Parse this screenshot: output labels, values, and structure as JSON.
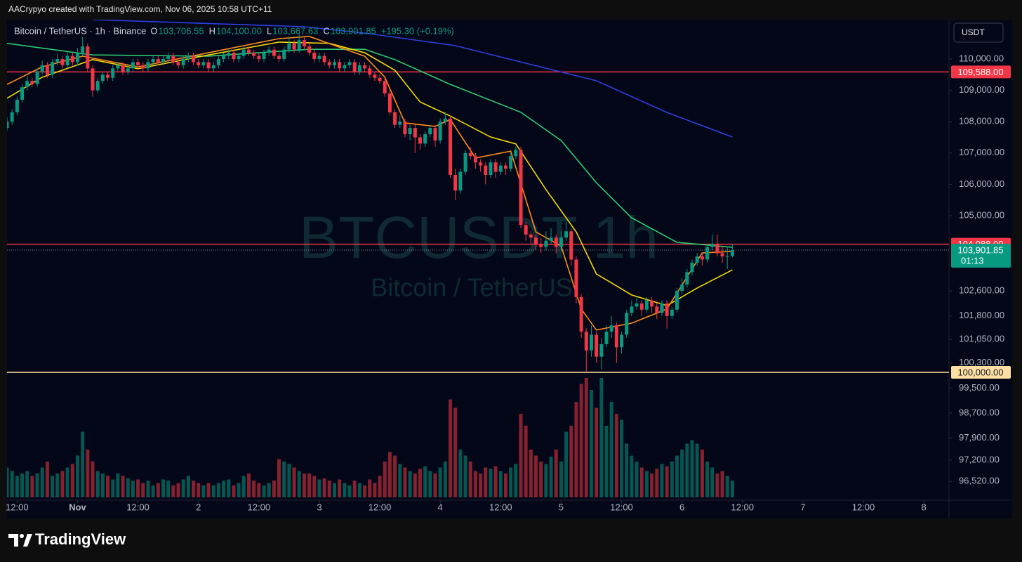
{
  "header": "AACrypyo created with TradingView.com, Nov 06, 2025 10:58 UTC+11",
  "brand": "TradingView",
  "chart_data": {
    "type": "candlestick",
    "title": "Bitcoin / TetherUS · 1h · Binance",
    "ohlc_legend": [
      [
        "O",
        "103,706.55"
      ],
      [
        "H",
        "104,100.00"
      ],
      [
        "L",
        "103,667.63"
      ],
      [
        "C",
        "103,901.85"
      ],
      [
        "",
        "+195.30 (+0.19%)"
      ]
    ],
    "currency": "USDT",
    "watermark": [
      "BTCUSDT 1h",
      "Bitcoin / TetherUS"
    ],
    "colors": {
      "up": "#089981",
      "down": "#f23645"
    },
    "candles": [
      [
        107800,
        108150,
        107700,
        108000
      ],
      [
        108000,
        108400,
        107900,
        108300
      ],
      [
        108300,
        108800,
        108200,
        108700
      ],
      [
        108700,
        109200,
        108600,
        109100
      ],
      [
        109100,
        109450,
        109000,
        109300
      ],
      [
        109300,
        109400,
        109100,
        109200
      ],
      [
        109200,
        109700,
        109100,
        109600
      ],
      [
        109600,
        109950,
        109500,
        109800
      ],
      [
        109800,
        109900,
        109400,
        109500
      ],
      [
        109500,
        110000,
        109400,
        109900
      ],
      [
        109900,
        110150,
        109800,
        110000
      ],
      [
        110000,
        110100,
        109700,
        109800
      ],
      [
        109800,
        110250,
        109700,
        110100
      ],
      [
        110100,
        110200,
        109800,
        109900
      ],
      [
        109900,
        110350,
        109800,
        110200
      ],
      [
        110200,
        110700,
        110100,
        110400
      ],
      [
        110400,
        110500,
        109600,
        109700
      ],
      [
        109700,
        109800,
        108800,
        109000
      ],
      [
        109000,
        109400,
        108900,
        109300
      ],
      [
        109300,
        109600,
        109200,
        109500
      ],
      [
        109500,
        109600,
        109300,
        109400
      ],
      [
        109400,
        109800,
        109300,
        109700
      ],
      [
        109700,
        109900,
        109600,
        109800
      ],
      [
        109800,
        109900,
        109500,
        109600
      ],
      [
        109600,
        109800,
        109500,
        109700
      ],
      [
        109700,
        110000,
        109600,
        109900
      ],
      [
        109900,
        110000,
        109700,
        109800
      ],
      [
        109800,
        109900,
        109600,
        109700
      ],
      [
        109700,
        110000,
        109600,
        109900
      ],
      [
        109900,
        110100,
        109800,
        110000
      ],
      [
        110000,
        110100,
        109800,
        109900
      ],
      [
        109900,
        110100,
        109800,
        110000
      ],
      [
        110000,
        110200,
        109900,
        110100
      ],
      [
        110100,
        110200,
        109800,
        109900
      ],
      [
        109900,
        110000,
        109700,
        109800
      ],
      [
        109800,
        110100,
        109700,
        110000
      ],
      [
        110000,
        110200,
        109900,
        110100
      ],
      [
        110100,
        110200,
        109800,
        109900
      ],
      [
        109900,
        110000,
        109700,
        109800
      ],
      [
        109800,
        110000,
        109700,
        109900
      ],
      [
        109900,
        110000,
        109600,
        109700
      ],
      [
        109700,
        109900,
        109600,
        109800
      ],
      [
        109800,
        110100,
        109700,
        110000
      ],
      [
        110000,
        110200,
        109900,
        110100
      ],
      [
        110100,
        110300,
        110000,
        110200
      ],
      [
        110200,
        110300,
        109900,
        110000
      ],
      [
        110000,
        110200,
        109900,
        110100
      ],
      [
        110100,
        110400,
        110000,
        110300
      ],
      [
        110300,
        110400,
        110100,
        110200
      ],
      [
        110200,
        110300,
        110000,
        110100
      ],
      [
        110100,
        110200,
        109900,
        110000
      ],
      [
        110000,
        110300,
        109900,
        110200
      ],
      [
        110200,
        110400,
        110100,
        110300
      ],
      [
        110300,
        110400,
        110000,
        110100
      ],
      [
        110100,
        110200,
        109900,
        110000
      ],
      [
        110000,
        110400,
        109900,
        110300
      ],
      [
        110300,
        110700,
        110200,
        110500
      ],
      [
        110500,
        110600,
        110200,
        110300
      ],
      [
        110300,
        110800,
        110200,
        110600
      ],
      [
        110600,
        110700,
        110300,
        110400
      ],
      [
        110400,
        110500,
        110100,
        110200
      ],
      [
        110200,
        110300,
        109900,
        110000
      ],
      [
        110000,
        110200,
        109900,
        110100
      ],
      [
        110100,
        110200,
        109800,
        109900
      ],
      [
        109900,
        110000,
        109700,
        109800
      ],
      [
        109800,
        110000,
        109700,
        109900
      ],
      [
        109900,
        110000,
        109600,
        109700
      ],
      [
        109700,
        109900,
        109600,
        109800
      ],
      [
        109800,
        110000,
        109700,
        109900
      ],
      [
        109900,
        110000,
        109500,
        109600
      ],
      [
        109600,
        109900,
        109500,
        109800
      ],
      [
        109800,
        109900,
        109600,
        109700
      ],
      [
        109700,
        109800,
        109400,
        109500
      ],
      [
        109500,
        109600,
        109300,
        109400
      ],
      [
        109400,
        109500,
        109200,
        109300
      ],
      [
        109300,
        109400,
        108800,
        108900
      ],
      [
        108900,
        109000,
        108200,
        108300
      ],
      [
        108300,
        108400,
        107800,
        107900
      ],
      [
        107900,
        108200,
        107800,
        108000
      ],
      [
        108000,
        108100,
        107500,
        107600
      ],
      [
        107600,
        107900,
        107400,
        107800
      ],
      [
        107800,
        107900,
        107000,
        107500
      ],
      [
        107500,
        107600,
        107100,
        107300
      ],
      [
        107300,
        107700,
        107200,
        107600
      ],
      [
        107600,
        107900,
        107500,
        107800
      ],
      [
        107800,
        107900,
        107200,
        107400
      ],
      [
        107400,
        108100,
        107300,
        108000
      ],
      [
        108000,
        108300,
        107900,
        108100
      ],
      [
        108100,
        108200,
        106200,
        106300
      ],
      [
        106300,
        106500,
        105500,
        105800
      ],
      [
        105800,
        106500,
        105700,
        106400
      ],
      [
        106400,
        107100,
        106300,
        107000
      ],
      [
        107000,
        107200,
        106800,
        106900
      ],
      [
        106900,
        107000,
        106500,
        106700
      ],
      [
        106700,
        106800,
        106400,
        106600
      ],
      [
        106600,
        106700,
        106000,
        106300
      ],
      [
        106300,
        106800,
        106200,
        106700
      ],
      [
        106700,
        106800,
        106200,
        106400
      ],
      [
        106400,
        106700,
        106300,
        106600
      ],
      [
        106600,
        106700,
        106300,
        106500
      ],
      [
        106500,
        107000,
        106400,
        106900
      ],
      [
        106900,
        107200,
        106800,
        107100
      ],
      [
        107100,
        107200,
        104600,
        104700
      ],
      [
        104700,
        104800,
        104200,
        104400
      ],
      [
        104400,
        104500,
        104100,
        104300
      ],
      [
        104300,
        104400,
        103900,
        104100
      ],
      [
        104100,
        104300,
        103800,
        104000
      ],
      [
        104000,
        104500,
        103900,
        104200
      ],
      [
        104200,
        104600,
        104100,
        104300
      ],
      [
        104300,
        104400,
        103800,
        104000
      ],
      [
        104000,
        104500,
        103900,
        104300
      ],
      [
        104300,
        104800,
        104200,
        104500
      ],
      [
        104500,
        104600,
        103400,
        103600
      ],
      [
        103600,
        103700,
        102200,
        102400
      ],
      [
        102400,
        102500,
        101100,
        101300
      ],
      [
        101300,
        101400,
        100000,
        100700
      ],
      [
        100700,
        101500,
        100500,
        101200
      ],
      [
        101200,
        101300,
        100300,
        100500
      ],
      [
        100500,
        101100,
        100100,
        100900
      ],
      [
        100900,
        101500,
        100800,
        101300
      ],
      [
        101300,
        101800,
        101100,
        101500
      ],
      [
        101500,
        101600,
        100300,
        100800
      ],
      [
        100800,
        101300,
        100600,
        101200
      ],
      [
        101200,
        102000,
        101100,
        101900
      ],
      [
        101900,
        102300,
        101800,
        102100
      ],
      [
        102100,
        102400,
        102000,
        102200
      ],
      [
        102200,
        102300,
        101800,
        102000
      ],
      [
        102000,
        102400,
        101900,
        102300
      ],
      [
        102300,
        102400,
        101900,
        102100
      ],
      [
        102100,
        102200,
        101700,
        101900
      ],
      [
        101900,
        102300,
        101800,
        102200
      ],
      [
        102200,
        102300,
        101400,
        101800
      ],
      [
        101800,
        102100,
        101700,
        102000
      ],
      [
        102000,
        102700,
        101900,
        102600
      ],
      [
        102600,
        103000,
        102500,
        102800
      ],
      [
        102800,
        103300,
        102700,
        103200
      ],
      [
        103200,
        103600,
        103100,
        103500
      ],
      [
        103500,
        103800,
        103400,
        103700
      ],
      [
        103700,
        103800,
        103400,
        103600
      ],
      [
        103600,
        104100,
        103500,
        104000
      ],
      [
        104000,
        104400,
        103900,
        104100
      ],
      [
        104100,
        104400,
        103700,
        103800
      ],
      [
        103800,
        104000,
        103500,
        103700
      ],
      [
        103700,
        104000,
        103300,
        103706.55
      ],
      [
        103706.55,
        104100,
        103667.63,
        103901.85
      ]
    ],
    "volume": [
      25,
      22,
      18,
      20,
      22,
      18,
      20,
      25,
      30,
      18,
      20,
      22,
      25,
      28,
      35,
      55,
      40,
      30,
      22,
      20,
      18,
      15,
      20,
      18,
      16,
      14,
      15,
      12,
      14,
      10,
      12,
      15,
      14,
      10,
      12,
      15,
      18,
      14,
      12,
      10,
      12,
      10,
      12,
      14,
      15,
      10,
      12,
      18,
      20,
      14,
      12,
      10,
      12,
      14,
      32,
      30,
      28,
      25,
      22,
      20,
      20,
      18,
      15,
      16,
      14,
      12,
      15,
      12,
      10,
      14,
      12,
      10,
      15,
      12,
      18,
      30,
      38,
      35,
      28,
      25,
      22,
      20,
      24,
      26,
      22,
      20,
      25,
      30,
      82,
      75,
      40,
      35,
      30,
      22,
      20,
      25,
      24,
      26,
      22,
      20,
      25,
      28,
      70,
      60,
      40,
      35,
      30,
      28,
      34,
      40,
      30,
      55,
      60,
      80,
      95,
      100,
      90,
      75,
      100,
      60,
      80,
      70,
      65,
      45,
      35,
      30,
      25,
      22,
      20,
      24,
      28,
      26,
      30,
      35,
      40,
      45,
      48,
      45,
      40,
      30,
      25,
      20,
      22,
      18,
      14
    ],
    "volume_lim": [
      0,
      100
    ],
    "moving_averages": [
      {
        "color": "#2f3fe0",
        "x": [
          17,
          59,
          72,
          89,
          103,
          117,
          131,
          144
        ],
        "values": [
          111256,
          111031,
          110807,
          110426,
          109865,
          109305,
          108296,
          107511
        ]
      },
      {
        "color": "#2ecc71",
        "x": [
          0,
          17,
          40,
          60,
          71,
          77,
          88,
          102,
          110,
          117,
          124,
          133,
          144
        ],
        "values": [
          110500,
          110130,
          110090,
          110310,
          110310,
          109980,
          109190,
          108300,
          107400,
          106050,
          104930,
          104150,
          103990
        ]
      },
      {
        "color": "#f5d90a",
        "x": [
          0,
          7,
          17,
          26,
          40,
          54,
          64,
          71,
          77,
          82,
          88,
          96,
          101,
          107,
          113,
          117,
          124,
          131,
          137,
          144
        ],
        "values": [
          108745,
          109420,
          109980,
          109690,
          110130,
          110540,
          110500,
          110200,
          109640,
          108630,
          108180,
          107510,
          107290,
          105830,
          104480,
          103140,
          102470,
          102130,
          102690,
          103270
        ]
      },
      {
        "color": "#ff8c1a",
        "x": [
          0,
          7,
          15,
          26,
          40,
          54,
          60,
          71,
          75,
          79,
          85,
          88,
          93,
          100,
          105,
          110,
          114,
          117,
          124,
          131,
          138,
          144
        ],
        "values": [
          109190,
          109750,
          110090,
          109750,
          110200,
          110650,
          110720,
          110090,
          109420,
          107960,
          107850,
          108070,
          106840,
          107060,
          104480,
          104030,
          102020,
          101350,
          101570,
          102020,
          103810,
          103860
        ]
      }
    ],
    "levels": [
      {
        "value": 109588,
        "label": "109,588.00",
        "color": "#f23645"
      },
      {
        "value": 104088,
        "label": "104,088.00",
        "color": "#f23645"
      },
      {
        "value": 100000,
        "label": "100,000.00",
        "color": "#ffe0a3"
      }
    ],
    "last_price": {
      "value": 103901.85,
      "label": "103,901.85",
      "countdown": "01:13",
      "color": "#089981"
    },
    "xlim": [
      0,
      187
    ],
    "xticks": [
      {
        "value": 2,
        "label": "12:00"
      },
      {
        "value": 14,
        "label": "Nov"
      },
      {
        "value": 26,
        "label": "12:00"
      },
      {
        "value": 38,
        "label": "2"
      },
      {
        "value": 50,
        "label": "12:00"
      },
      {
        "value": 62,
        "label": "3"
      },
      {
        "value": 74,
        "label": "12:00"
      },
      {
        "value": 86,
        "label": "4"
      },
      {
        "value": 98,
        "label": "12:00"
      },
      {
        "value": 110,
        "label": "5"
      },
      {
        "value": 122,
        "label": "12:00"
      },
      {
        "value": 134,
        "label": "6"
      },
      {
        "value": 146,
        "label": "12:00"
      },
      {
        "value": 158,
        "label": "7"
      },
      {
        "value": 170,
        "label": "12:00"
      },
      {
        "value": 182,
        "label": "8"
      }
    ],
    "ylim": [
      95920,
      111255
    ],
    "yticks": [
      {
        "value": 110000,
        "label": "110,000.00"
      },
      {
        "value": 109000,
        "label": "109,000.00"
      },
      {
        "value": 108000,
        "label": "108,000.00"
      },
      {
        "value": 107000,
        "label": "107,000.00"
      },
      {
        "value": 106000,
        "label": "106,000.00"
      },
      {
        "value": 105000,
        "label": "105,000.00"
      },
      {
        "value": 102600,
        "label": "102,600.00"
      },
      {
        "value": 101800,
        "label": "101,800.00"
      },
      {
        "value": 101050,
        "label": "101,050.00"
      },
      {
        "value": 100300,
        "label": "100,300.00"
      },
      {
        "value": 99500,
        "label": "99,500.00"
      },
      {
        "value": 98700,
        "label": "98,700.00"
      },
      {
        "value": 97900,
        "label": "97,900.00"
      },
      {
        "value": 97200,
        "label": "97,200.00"
      },
      {
        "value": 96520,
        "label": "96,520.00"
      }
    ]
  }
}
